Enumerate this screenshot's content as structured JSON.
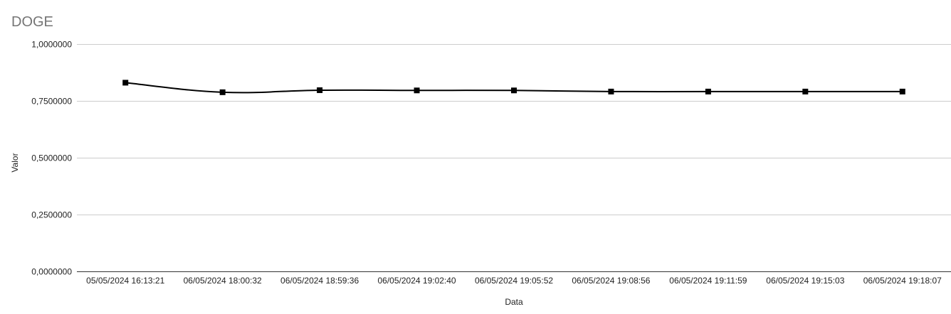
{
  "chart_data": {
    "type": "line",
    "title": "DOGE",
    "xlabel": "Data",
    "ylabel": "Valor",
    "categories": [
      "05/05/2024 16:13:21",
      "06/05/2024 18:00:32",
      "06/05/2024 18:59:36",
      "06/05/2024 19:02:40",
      "06/05/2024 19:05:52",
      "06/05/2024 19:08:56",
      "06/05/2024 19:11:59",
      "06/05/2024 19:15:03",
      "06/05/2024 19:18:07"
    ],
    "series": [
      {
        "values": [
          0.83,
          0.788,
          0.797,
          0.796,
          0.796,
          0.791,
          0.791,
          0.791,
          0.791
        ],
        "color": "#000000",
        "marker": "square",
        "smooth": true
      }
    ],
    "ylim": [
      0,
      1
    ],
    "yticks": [
      "0,0000000",
      "0,2500000",
      "0,5000000",
      "0,7500000",
      "1,0000000"
    ],
    "ytick_values": [
      0,
      0.25,
      0.5,
      0.75,
      1
    ],
    "grid": true,
    "legend": "none",
    "colors": {
      "title": "#757575",
      "grid": "#cccccc",
      "baseline": "#333333",
      "text": "#222222"
    }
  }
}
